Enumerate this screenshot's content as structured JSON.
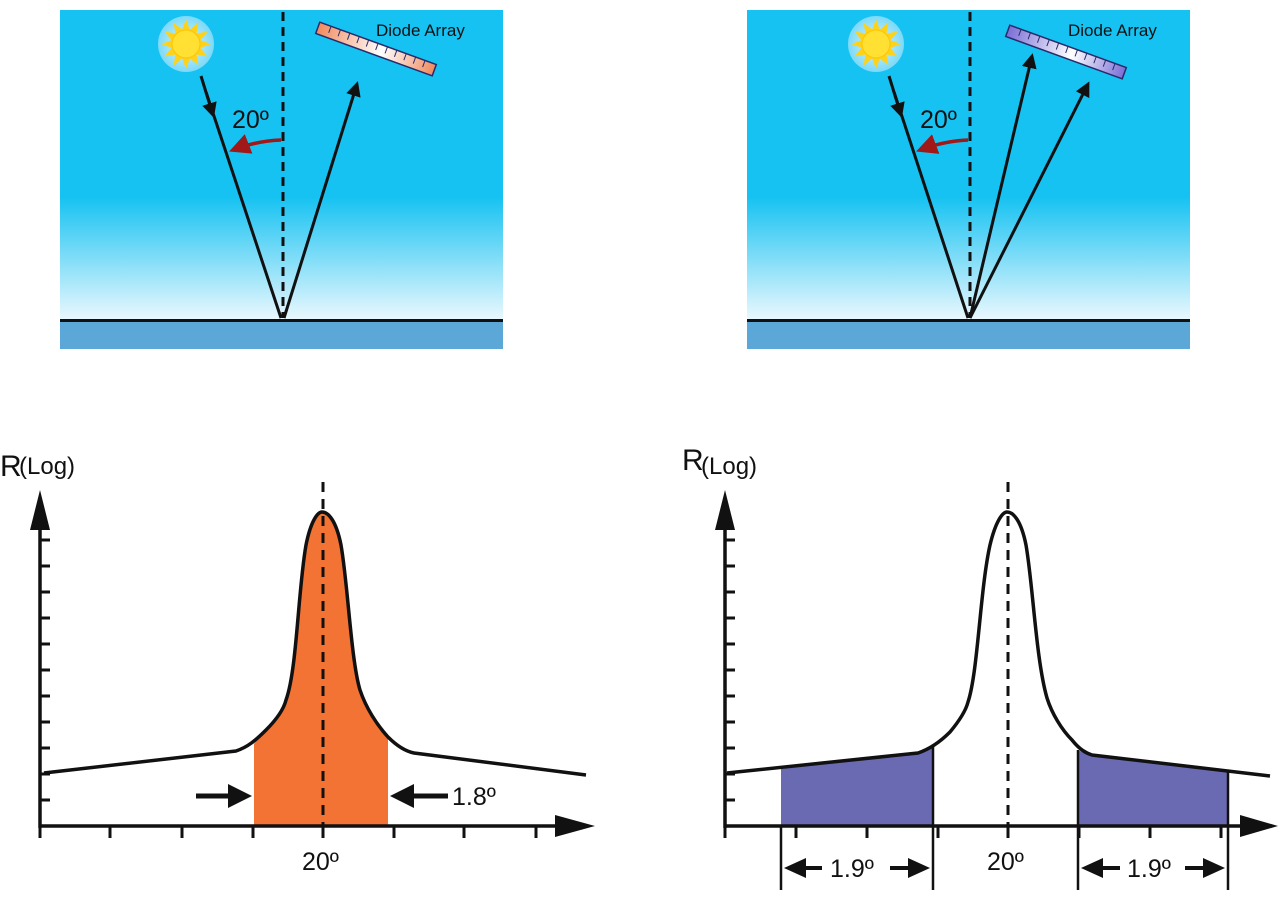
{
  "scenes": {
    "left": {
      "detector_label": "Diode Array",
      "incidence_angle_label": "20º",
      "detector_gradient": [
        "#f08a5d",
        "#ffffff"
      ]
    },
    "right": {
      "detector_label": "Diode Array",
      "incidence_angle_label": "20º",
      "detector_gradient": [
        "#7b6fd6",
        "#ffffff"
      ]
    }
  },
  "plots": {
    "left": {
      "y_axis_label_main": "R",
      "y_axis_label_sub": "(Log)",
      "x_center_label": "20º",
      "width_label": "1.8º",
      "fill_color": "#f37335"
    },
    "right": {
      "y_axis_label_main": "R",
      "y_axis_label_sub": "(Log)",
      "x_center_label": "20º",
      "left_width_label": "1.9º",
      "right_width_label": "1.9º",
      "fill_color": "#6a6ab3"
    }
  },
  "colors": {
    "sky_top": "#16c2f2",
    "sky_bottom": "#eef9fe",
    "ground": "#5aa7d8",
    "sun": "#ffe033",
    "red_arrow": "#a01818"
  }
}
